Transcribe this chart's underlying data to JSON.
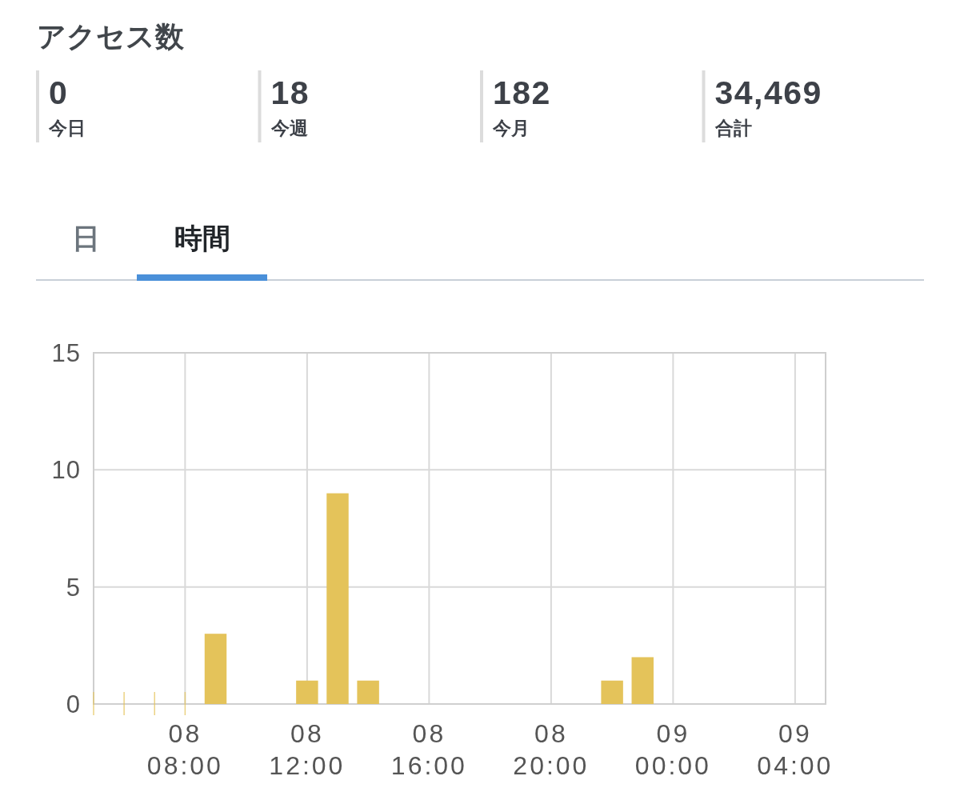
{
  "chart_data": [
    {
      "type": "other",
      "title": "アクセス数",
      "annotations": [
        "0",
        "今日",
        "18",
        "今週",
        "182",
        "今月",
        "34,469",
        "合計"
      ]
    },
    {
      "type": "bar",
      "annotations": [
        "日",
        "時間"
      ],
      "categories": [
        null,
        null,
        null,
        "08\n08:00",
        null,
        null,
        null,
        "08\n12:00",
        null,
        null,
        null,
        "08\n16:00",
        null,
        null,
        null,
        "08\n20:00",
        null,
        null,
        null,
        "09\n00:00",
        null,
        null,
        null,
        "09\n04:00"
      ],
      "values": [
        0,
        0,
        0,
        0,
        3,
        null,
        null,
        1,
        9,
        1,
        null,
        null,
        null,
        null,
        null,
        null,
        null,
        1,
        2,
        null,
        null,
        null,
        null,
        null
      ],
      "color": "#e4c35a",
      "ylim": [
        0,
        15
      ],
      "yticks": [
        0,
        5,
        10,
        15
      ],
      "grid": true
    }
  ]
}
